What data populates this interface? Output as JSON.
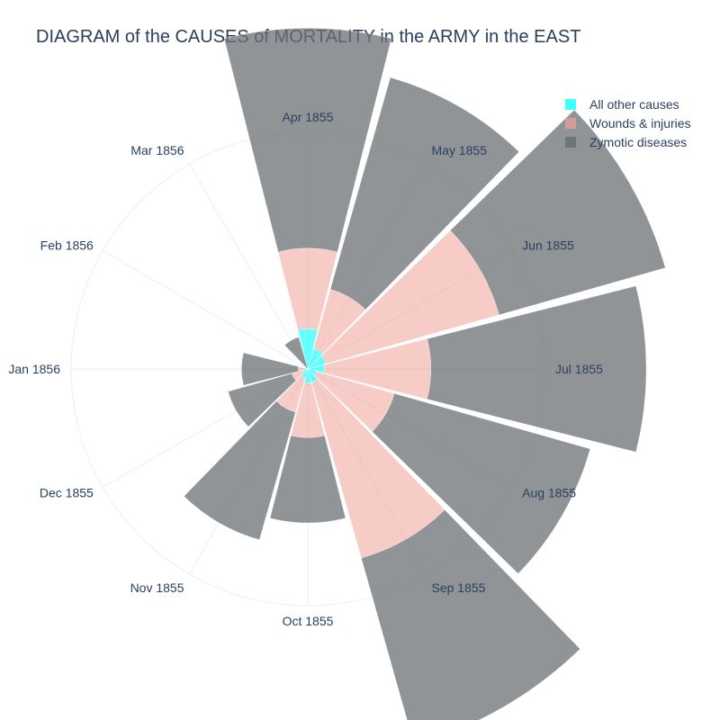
{
  "chart_data": {
    "type": "barpolar",
    "title": "DIAGRAM of the CAUSES of MORTALITY in the ARMY in the EAST",
    "categories": [
      "Apr 1855",
      "May 1855",
      "Jun 1855",
      "Jul 1855",
      "Aug 1855",
      "Sep 1855",
      "Oct 1855",
      "Nov 1855",
      "Dec 1855",
      "Jan 1856",
      "Feb 1856",
      "Mar 1856"
    ],
    "direction": "clockwise",
    "rotation_start": "Apr 1855 at top",
    "radial_range": [
      0,
      100
    ],
    "radial_axis_visible": false,
    "legend_position": "top-right",
    "series": [
      {
        "name": "All other causes",
        "color": "#00ffff",
        "opacity": 0.6,
        "values": [
          17,
          9,
          8,
          7,
          4,
          6,
          6,
          4,
          2,
          2,
          0,
          0
        ]
      },
      {
        "name": "Wounds & injuries",
        "color": "#f0a097",
        "opacity": 0.55,
        "values": [
          34,
          26,
          76,
          45,
          34,
          77,
          23,
          15,
          5,
          2,
          0,
          0
        ]
      },
      {
        "name": "Zymotic diseases",
        "color": "#6b7074",
        "opacity": 0.75,
        "values": [
          93,
          93,
          73,
          91,
          86,
          82,
          36,
          56,
          28,
          24,
          0,
          14
        ]
      }
    ]
  }
}
